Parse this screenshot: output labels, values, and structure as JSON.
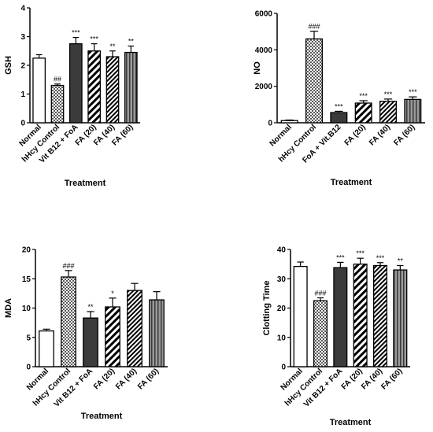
{
  "chart_data": [
    {
      "type": "bar",
      "categories": [
        "Normal",
        "hHcy Control",
        "Vit B12 + FoA",
        "FA (20)",
        "FA (40)",
        "FA (60)"
      ],
      "values": [
        2.25,
        1.3,
        2.75,
        2.5,
        2.3,
        2.45
      ],
      "errors": [
        0.12,
        0.05,
        0.22,
        0.25,
        0.2,
        0.22
      ],
      "annotations": [
        "",
        "##",
        "***",
        "***",
        "**",
        "**"
      ],
      "ylabel": "GSH",
      "xlabel": "Treatment",
      "ylim": [
        0,
        4
      ],
      "yticks": [
        "0",
        "1",
        "2",
        "3",
        "4"
      ],
      "patterns": [
        "white",
        "checker",
        "dark",
        "stripe",
        "stripe-dense",
        "gray-stripe"
      ]
    },
    {
      "type": "bar",
      "categories": [
        "Normal",
        "hHcy Control",
        "FoA + Vit.B12",
        "FA (20)",
        "FA (40)",
        "FA (60)"
      ],
      "values": [
        120,
        4600,
        560,
        1080,
        1180,
        1280
      ],
      "errors": [
        30,
        420,
        70,
        130,
        120,
        140
      ],
      "annotations": [
        "",
        "###",
        "***",
        "***",
        "***",
        "***"
      ],
      "ylabel": "NO",
      "xlabel": "Treatment",
      "ylim": [
        0,
        6000
      ],
      "yticks": [
        "0",
        "2000",
        "4000",
        "6000"
      ],
      "patterns": [
        "white",
        "checker",
        "dark",
        "stripe",
        "stripe-dense",
        "gray-stripe"
      ]
    },
    {
      "type": "bar",
      "categories": [
        "Normal",
        "hHcy Control",
        "Vit B12 + FoA",
        "FA (20)",
        "FA (40)",
        "FA (60)"
      ],
      "values": [
        6.1,
        15.3,
        8.3,
        10.2,
        13.0,
        11.4
      ],
      "errors": [
        0.3,
        1.1,
        1.1,
        1.5,
        1.2,
        1.4
      ],
      "annotations": [
        "",
        "###",
        "**",
        "*",
        "",
        ""
      ],
      "ylabel": "MDA",
      "xlabel": "Treatment",
      "ylim": [
        0,
        20
      ],
      "yticks": [
        "0",
        "5",
        "10",
        "15",
        "20"
      ],
      "patterns": [
        "white",
        "checker",
        "dark",
        "stripe",
        "stripe-dense",
        "gray-stripe"
      ]
    },
    {
      "type": "bar",
      "categories": [
        "Normal",
        "hHcy Control",
        "Vit B12 + FoA",
        "FA (20)",
        "FA (40)",
        "FA (60)"
      ],
      "values": [
        34.2,
        22.5,
        33.8,
        35.0,
        34.5,
        33.0
      ],
      "errors": [
        1.5,
        1.0,
        1.8,
        2.0,
        1.0,
        1.5
      ],
      "annotations": [
        "",
        "###",
        "***",
        "***",
        "***",
        "**"
      ],
      "ylabel": "Clotting Time",
      "xlabel": "Treatment",
      "ylim": [
        0,
        40
      ],
      "yticks": [
        "0",
        "10",
        "20",
        "30",
        "40"
      ],
      "patterns": [
        "white",
        "checker",
        "dark",
        "stripe",
        "stripe-dense",
        "gray-stripe"
      ]
    }
  ]
}
